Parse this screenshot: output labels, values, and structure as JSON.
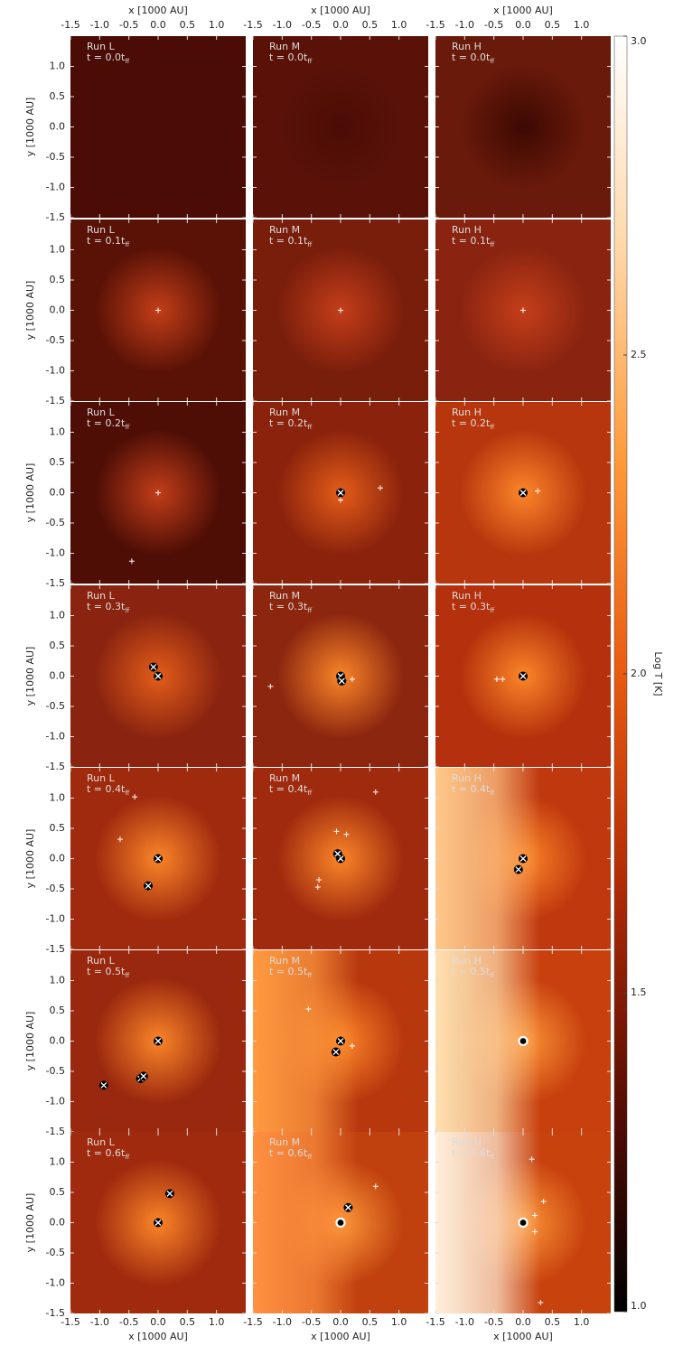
{
  "chart_data": {
    "type": "map-grid",
    "xlabel": "x [1000 AU]",
    "ylabel": "y [1000 AU]",
    "xlim": [
      -1.5,
      1.5
    ],
    "ylim": [
      -1.5,
      1.5
    ],
    "xticks": [
      -1.5,
      {
        "value": -1.0,
        "label": "-1.0"
      },
      -0.5,
      {
        "value": 0.0,
        "label": "0.0"
      },
      0.5,
      {
        "value": 1.0,
        "label": "1.0"
      }
    ],
    "yticks": [
      -1.5,
      {
        "value": -1.0,
        "label": "-1.0"
      },
      -0.5,
      {
        "value": 0.0,
        "label": "0.0"
      },
      0.5,
      {
        "value": 1.0,
        "label": "1.0"
      }
    ],
    "colorbar": {
      "label": "Log T [K]",
      "lim": [
        1.0,
        3.0
      ],
      "ticks": [
        {
          "value": 1.0,
          "label": "1.0"
        },
        1.5,
        {
          "value": 2.0,
          "label": "2.0"
        },
        2.5,
        {
          "value": 3.0,
          "label": "3.0"
        }
      ],
      "colors": [
        "#000000",
        "#5a0e04",
        "#b02a06",
        "#e85a10",
        "#ff9a3a",
        "#ffd8a8",
        "#ffffff"
      ]
    },
    "time_subscript": "ff",
    "panels": [
      [
        {
          "run": "Run L",
          "time": "t = 0.0t",
          "bg": "#4a0c05",
          "glow": "#4a0c05",
          "sinks": {
            "x": [],
            "y": [],
            "marker": []
          }
        },
        {
          "run": "Run M",
          "time": "t = 0.0t",
          "bg": "#5a1208",
          "glow": "#4a0c05",
          "sinks": {
            "x": [],
            "y": [],
            "marker": []
          }
        },
        {
          "run": "Run H",
          "time": "t = 0.0t",
          "bg": "#6a1a0a",
          "glow": "#3a0803",
          "sinks": {
            "x": [],
            "y": [],
            "marker": []
          }
        }
      ],
      [
        {
          "run": "Run L",
          "time": "t = 0.1t",
          "bg": "#5a1206",
          "glow": "#c8401a",
          "sinks": {
            "x": [
              0.0
            ],
            "y": [
              0.0
            ],
            "marker": [
              "plus"
            ]
          }
        },
        {
          "run": "Run M",
          "time": "t = 0.1t",
          "bg": "#7a1e0c",
          "glow": "#c8401a",
          "sinks": {
            "x": [
              0.0
            ],
            "y": [
              0.0
            ],
            "marker": [
              "plus"
            ]
          }
        },
        {
          "run": "Run H",
          "time": "t = 0.1t",
          "bg": "#8a2410",
          "glow": "#c8401a",
          "sinks": {
            "x": [
              0.0
            ],
            "y": [
              0.0
            ],
            "marker": [
              "plus"
            ]
          }
        }
      ],
      [
        {
          "run": "Run L",
          "time": "t = 0.2t",
          "bg": "#4e0e06",
          "glow": "#c8401a",
          "sinks": {
            "x": [
              0.0,
              -0.45
            ],
            "y": [
              0.0,
              -1.13
            ],
            "marker": [
              "plus",
              "plus"
            ]
          }
        },
        {
          "run": "Run M",
          "time": "t = 0.2t",
          "bg": "#8a220c",
          "glow": "#e8601a",
          "sinks": {
            "x": [
              0.0,
              0.0,
              0.68
            ],
            "y": [
              0.0,
              -0.12,
              0.08
            ],
            "marker": [
              "xcircle",
              "plus",
              "plus"
            ]
          }
        },
        {
          "run": "Run H",
          "time": "t = 0.2t",
          "bg": "#b8360e",
          "glow": "#ff8a2a",
          "sinks": {
            "x": [
              0.0,
              0.25
            ],
            "y": [
              0.0,
              0.03
            ],
            "marker": [
              "xcircle",
              "plus"
            ]
          }
        }
      ],
      [
        {
          "run": "Run L",
          "time": "t = 0.3t",
          "bg": "#8a2410",
          "glow": "#e8601a",
          "sinks": {
            "x": [
              -0.08,
              0.0
            ],
            "y": [
              0.15,
              0.0
            ],
            "marker": [
              "xcircle",
              "xcircle"
            ]
          }
        },
        {
          "run": "Run M",
          "time": "t = 0.3t",
          "bg": "#8c260f",
          "glow": "#ff8a2a",
          "sinks": {
            "x": [
              0.0,
              0.02,
              0.2,
              -1.2
            ],
            "y": [
              0.0,
              -0.08,
              -0.05,
              -0.17
            ],
            "marker": [
              "xcircle",
              "xcircle",
              "plus",
              "plus"
            ]
          }
        },
        {
          "run": "Run H",
          "time": "t = 0.3t",
          "bg": "#b5300c",
          "glow": "#ff8a2a",
          "sinks": {
            "x": [
              0.0,
              -0.45,
              -0.35
            ],
            "y": [
              0.0,
              -0.05,
              -0.05
            ],
            "marker": [
              "xcircle",
              "plus",
              "plus"
            ]
          }
        }
      ],
      [
        {
          "run": "Run L",
          "time": "t = 0.4t",
          "bg": "#a02a0e",
          "glow": "#ff8a2a",
          "sinks": {
            "x": [
              0.0,
              -0.17,
              -0.65,
              -0.4
            ],
            "y": [
              0.0,
              -0.45,
              0.32,
              1.02
            ],
            "marker": [
              "xcircle",
              "xcircle",
              "plus",
              "plus"
            ]
          }
        },
        {
          "run": "Run M",
          "time": "t = 0.4t",
          "bg": "#a02a0e",
          "glow": "#ff8a2a",
          "sinks": {
            "x": [
              0.0,
              -0.05,
              -0.07,
              0.1,
              -0.37,
              -0.39,
              0.6
            ],
            "y": [
              0.0,
              0.08,
              0.45,
              0.4,
              -0.35,
              -0.47,
              1.1
            ],
            "marker": [
              "xcircle",
              "xcircle",
              "plus",
              "plus",
              "plus",
              "plus",
              "plus"
            ]
          }
        },
        {
          "run": "Run H",
          "time": "t = 0.4t",
          "bg": "#c0380e",
          "glow": "#ff8a2a",
          "edge": "#ffc88a",
          "sinks": {
            "x": [
              0.0,
              -0.08
            ],
            "y": [
              0.0,
              -0.18
            ],
            "marker": [
              "xcircle",
              "xcircle"
            ]
          }
        }
      ],
      [
        {
          "run": "Run L",
          "time": "t = 0.5t",
          "bg": "#9a280e",
          "glow": "#ff8a2a",
          "sinks": {
            "x": [
              0.0,
              -0.93,
              -0.3,
              -0.25
            ],
            "y": [
              0.0,
              -0.73,
              -0.62,
              -0.58
            ],
            "marker": [
              "xcircle",
              "xcircle",
              "xcircle",
              "xcircle"
            ]
          }
        },
        {
          "run": "Run M",
          "time": "t = 0.5t",
          "bg": "#b8380e",
          "glow": "#ff8a2a",
          "edge": "#ff9a40",
          "sinks": {
            "x": [
              0.0,
              -0.08,
              -0.55,
              0.2
            ],
            "y": [
              0.0,
              -0.18,
              0.53,
              -0.08
            ],
            "marker": [
              "xcircle",
              "xcircle",
              "plus",
              "plus"
            ]
          }
        },
        {
          "run": "Run H",
          "time": "t = 0.5t",
          "bg": "#c8400e",
          "glow": "#ff9a3a",
          "edge": "#ffe0b0",
          "sinks": {
            "x": [
              0.0
            ],
            "y": [
              0.0
            ],
            "marker": [
              "ring"
            ]
          }
        }
      ],
      [
        {
          "run": "Run L",
          "time": "t = 0.6t",
          "bg": "#a02a0e",
          "glow": "#ff8a2a",
          "sinks": {
            "x": [
              0.0,
              0.2
            ],
            "y": [
              0.0,
              0.48
            ],
            "marker": [
              "xcircle",
              "xcircle"
            ]
          }
        },
        {
          "run": "Run M",
          "time": "t = 0.6t",
          "bg": "#c0400e",
          "glow": "#ff9a3a",
          "edge": "#ff9040",
          "sinks": {
            "x": [
              0.0,
              0.13,
              0.6
            ],
            "y": [
              0.0,
              0.25,
              0.6
            ],
            "marker": [
              "ring",
              "xcircle",
              "plus"
            ]
          }
        },
        {
          "run": "Run H",
          "time": "t = 0.6t",
          "bg": "#c8420e",
          "glow": "#ff9a3a",
          "edge": "#fff0dc",
          "sinks": {
            "x": [
              0.0,
              0.15,
              0.35,
              0.2,
              0.2,
              0.3
            ],
            "y": [
              0.0,
              1.05,
              0.35,
              0.12,
              -0.15,
              -1.32
            ],
            "marker": [
              "ring",
              "plus",
              "plus",
              "plus",
              "plus",
              "plus"
            ]
          }
        }
      ]
    ]
  }
}
